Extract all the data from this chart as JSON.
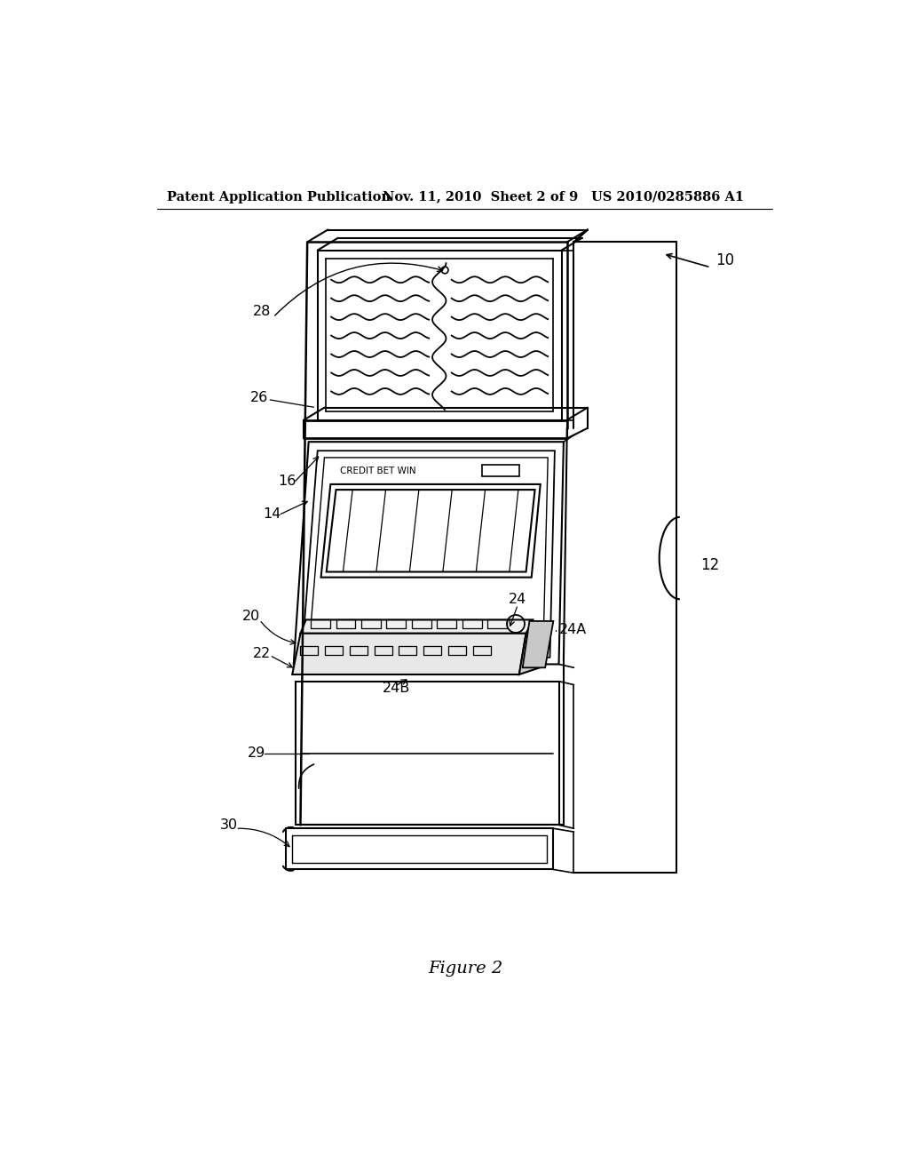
{
  "background_color": "#ffffff",
  "header_left": "Patent Application Publication",
  "header_center": "Nov. 11, 2010  Sheet 2 of 9",
  "header_right": "US 2010/0285886 A1",
  "figure_label": "Figure 2"
}
